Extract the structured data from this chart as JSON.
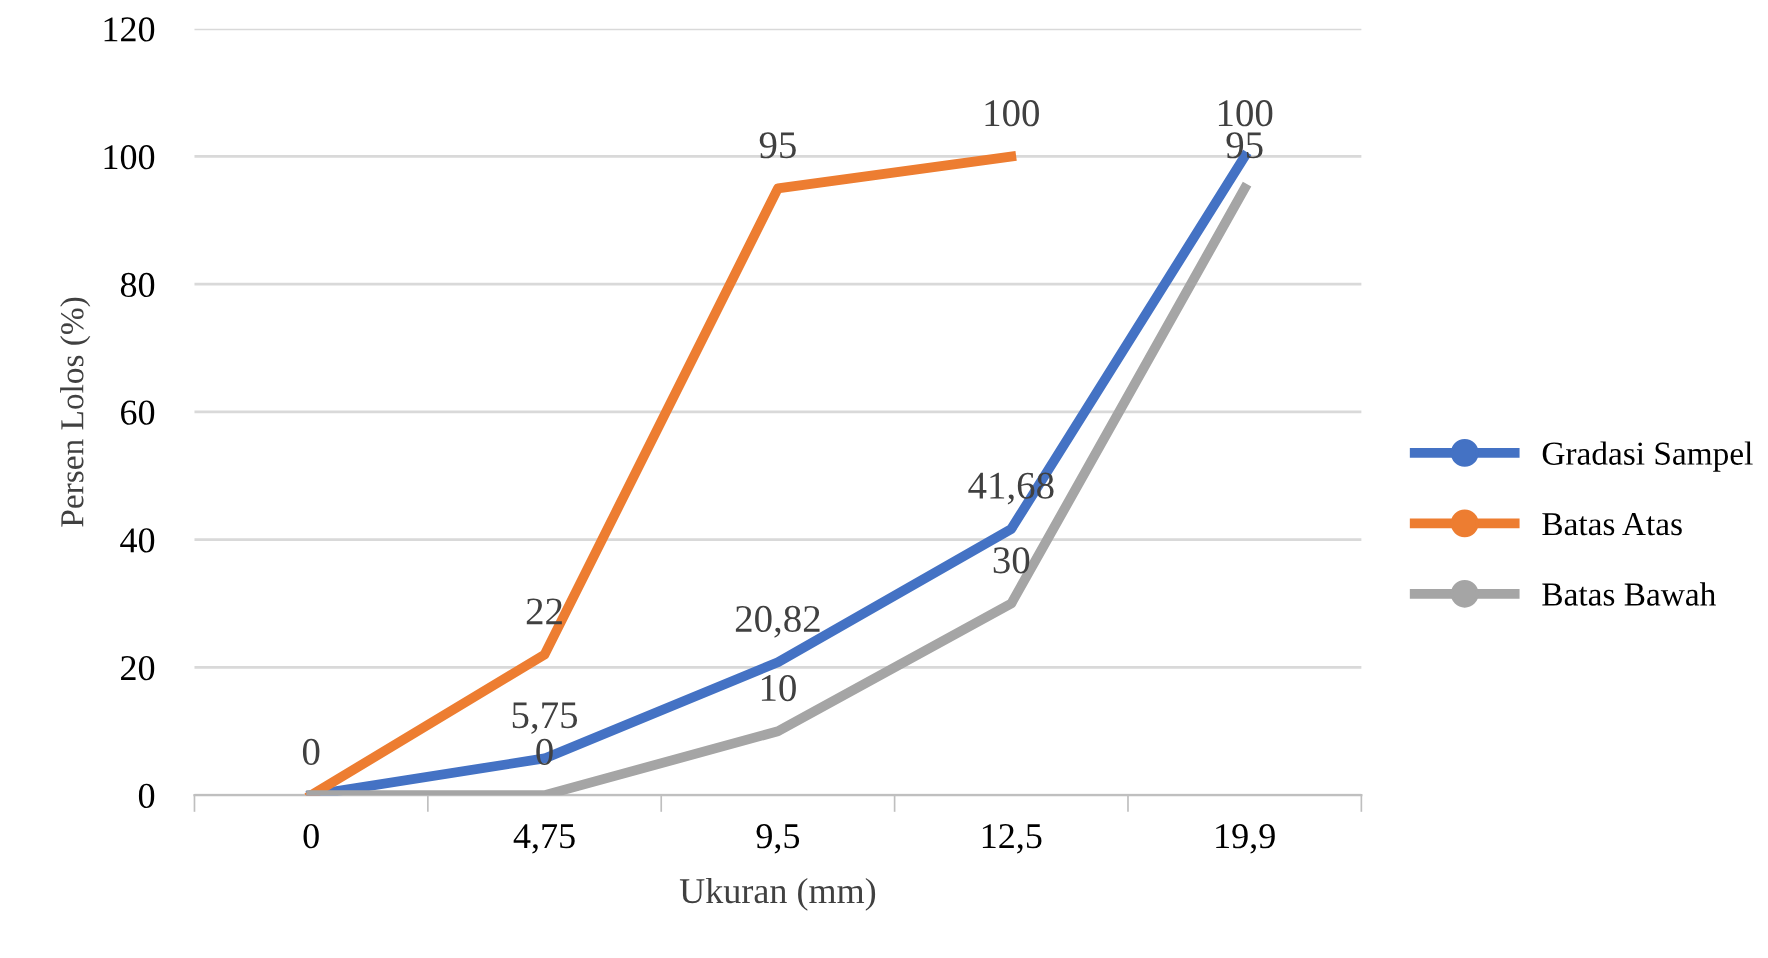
{
  "chart_data": {
    "type": "line",
    "xlabel": "Ukuran (mm)",
    "ylabel": "Persen Lolos (%)",
    "categories": [
      "0",
      "4,75",
      "9,5",
      "12,5",
      "19,9"
    ],
    "series": [
      {
        "name": "Gradasi Sampel",
        "color": "#4472c4",
        "values": [
          0,
          5.75,
          20.82,
          41.68,
          100
        ],
        "value_labels": [
          null,
          "5,75",
          "20,82",
          "41,68",
          "100"
        ]
      },
      {
        "name": "Batas Atas",
        "color": "#ed7d31",
        "values": [
          0,
          22,
          95,
          100,
          null
        ],
        "value_labels": [
          "0",
          "22",
          "95",
          "100",
          null
        ]
      },
      {
        "name": "Batas Bawah",
        "color": "#a5a5a5",
        "values": [
          0,
          0,
          10,
          30,
          95
        ],
        "value_labels": [
          null,
          "0",
          "10",
          "30",
          "95"
        ]
      }
    ],
    "ylim": [
      0,
      120
    ],
    "yticks": [
      0,
      20,
      40,
      60,
      80,
      100,
      120
    ],
    "grid": "y",
    "legend": "right",
    "line_style": "solid",
    "marker": "none"
  }
}
